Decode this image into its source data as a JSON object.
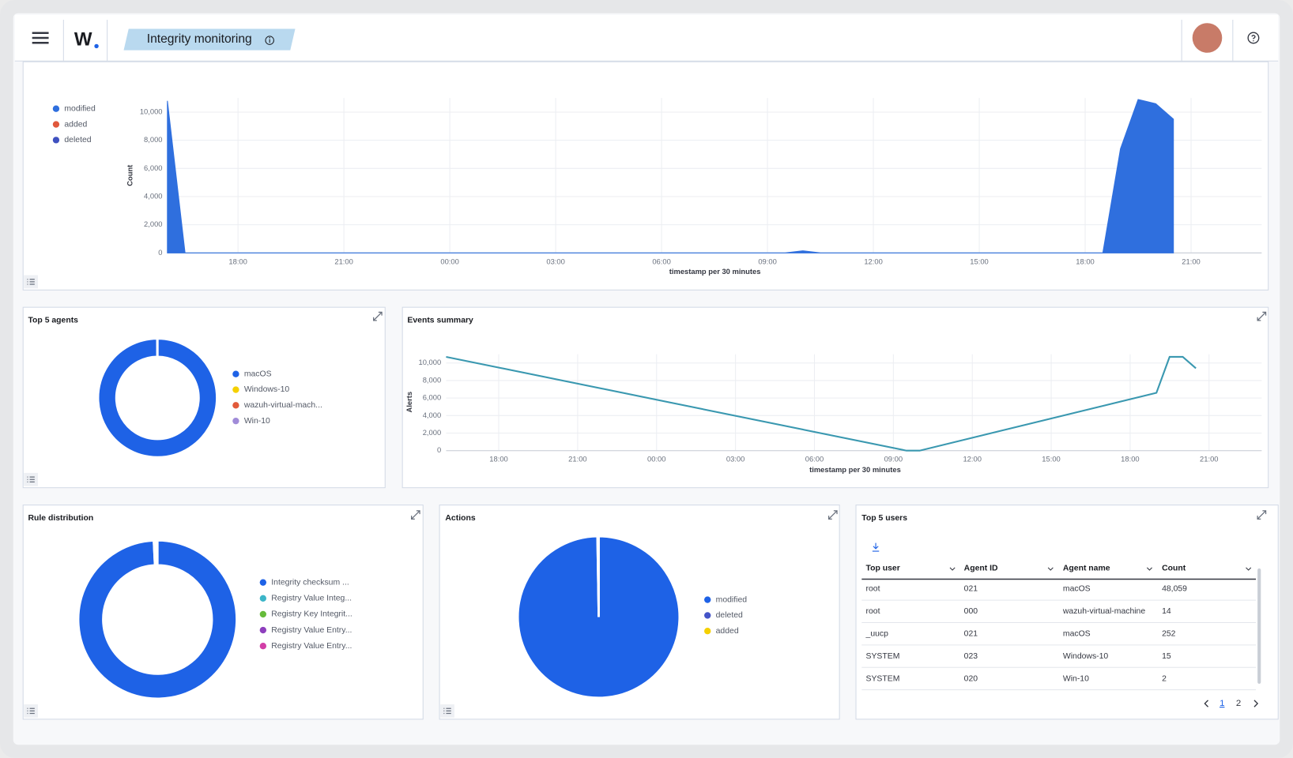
{
  "header": {
    "logo": "W",
    "tab": "Integrity monitoring"
  },
  "chart_data": [
    {
      "type": "area",
      "x": [
        16,
        16.5,
        33.5,
        34,
        34.5,
        42.5,
        43,
        43.5,
        44,
        44.5
      ],
      "series": [
        {
          "name": "modified",
          "color": "#2f6fde",
          "values": [
            10800,
            0,
            0,
            150,
            0,
            0,
            7400,
            10900,
            10600,
            9500
          ]
        },
        {
          "name": "added",
          "color": "#e0583c"
        },
        {
          "name": "deleted",
          "color": "#3f51c0"
        }
      ],
      "xlim": [
        16,
        47
      ],
      "ylim": [
        0,
        11000
      ],
      "xticks": [
        {
          "value": 18,
          "label": "18:00"
        },
        {
          "value": 21,
          "label": "21:00"
        },
        {
          "value": 24,
          "label": "00:00"
        },
        {
          "value": 27,
          "label": "03:00"
        },
        {
          "value": 30,
          "label": "06:00"
        },
        {
          "value": 33,
          "label": "09:00"
        },
        {
          "value": 36,
          "label": "12:00"
        },
        {
          "value": 39,
          "label": "15:00"
        },
        {
          "value": 42,
          "label": "18:00"
        },
        {
          "value": 45,
          "label": "21:00"
        }
      ],
      "yticks": [
        0,
        {
          "value": 2000,
          "label": "2,000"
        },
        {
          "value": 4000,
          "label": "4,000"
        },
        {
          "value": 6000,
          "label": "6,000"
        },
        {
          "value": 8000,
          "label": "8,000"
        },
        {
          "value": 10000,
          "label": "10,000"
        }
      ],
      "y_label": "Count",
      "x_label": "timestamp per 30 minutes",
      "grid": true,
      "legend": "top-left"
    },
    {
      "type": "donut",
      "title": "Top 5 agents",
      "categories": [
        "macOS",
        "Windows-10",
        "wazuh-virtual-mach...",
        "Win-10"
      ],
      "values": [
        48311,
        15,
        14,
        2
      ],
      "colors": [
        "#1e62e6",
        "#f5d000",
        "#e25a3a",
        "#a08bd8"
      ],
      "legend": "right"
    },
    {
      "type": "line",
      "title": "Events summary",
      "x": [
        16,
        33.5,
        34,
        43,
        43.5,
        44,
        44.5
      ],
      "values": [
        10700,
        0,
        0,
        6600,
        10700,
        10700,
        9400
      ],
      "color": "#3a98b0",
      "xlim": [
        16,
        47
      ],
      "ylim": [
        0,
        11000
      ],
      "xticks": [
        {
          "value": 18,
          "label": "18:00"
        },
        {
          "value": 21,
          "label": "21:00"
        },
        {
          "value": 24,
          "label": "00:00"
        },
        {
          "value": 27,
          "label": "03:00"
        },
        {
          "value": 30,
          "label": "06:00"
        },
        {
          "value": 33,
          "label": "09:00"
        },
        {
          "value": 36,
          "label": "12:00"
        },
        {
          "value": 39,
          "label": "15:00"
        },
        {
          "value": 42,
          "label": "18:00"
        },
        {
          "value": 45,
          "label": "21:00"
        }
      ],
      "yticks": [
        0,
        {
          "value": 2000,
          "label": "2,000"
        },
        {
          "value": 4000,
          "label": "4,000"
        },
        {
          "value": 6000,
          "label": "6,000"
        },
        {
          "value": 8000,
          "label": "8,000"
        },
        {
          "value": 10000,
          "label": "10,000"
        }
      ],
      "y_label": "Alerts",
      "x_label": "timestamp per 30 minutes",
      "grid": true
    },
    {
      "type": "donut",
      "title": "Rule distribution",
      "categories": [
        "Integrity checksum ...",
        "Registry Value Integ...",
        "Registry Key Integrit...",
        "Registry Value Entry...",
        "Registry Value Entry..."
      ],
      "values": [
        48000,
        200,
        100,
        50,
        20
      ],
      "colors": [
        "#1e62e6",
        "#3cb5c8",
        "#66bb3a",
        "#8e3fbd",
        "#d23ea7"
      ],
      "legend": "right"
    },
    {
      "type": "pie",
      "title": "Actions",
      "categories": [
        "modified",
        "deleted",
        "added"
      ],
      "values": [
        48000,
        120,
        5
      ],
      "colors": [
        "#1e62e6",
        "#4454c8",
        "#f5d000"
      ],
      "legend": "right"
    }
  ],
  "table": {
    "title": "Top 5 users",
    "columns": [
      "Top user",
      "Agent ID",
      "Agent name",
      "Count"
    ],
    "rows": [
      [
        "root",
        "021",
        "macOS",
        "48,059"
      ],
      [
        "root",
        "000",
        "wazuh-virtual-machine",
        "14"
      ],
      [
        "_uucp",
        "021",
        "macOS",
        "252"
      ],
      [
        "SYSTEM",
        "023",
        "Windows-10",
        "15"
      ],
      [
        "SYSTEM",
        "020",
        "Win-10",
        "2"
      ]
    ],
    "pages": [
      "1",
      "2"
    ]
  }
}
